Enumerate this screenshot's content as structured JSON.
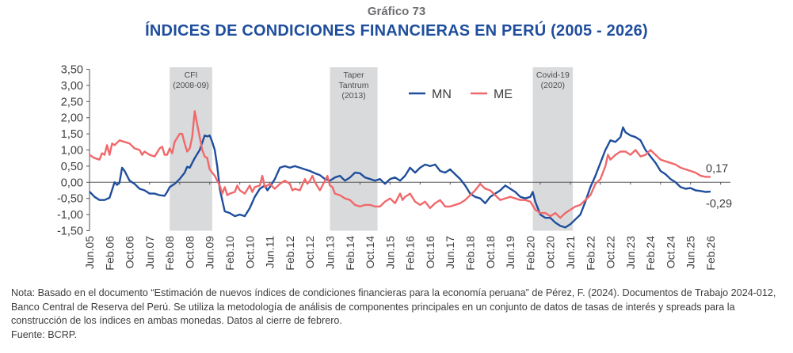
{
  "header": {
    "subtitle": "Gráfico 73",
    "title": "ÍNDICES DE CONDICIONES FINANCIERAS EN PERÚ (2005 - 2026)"
  },
  "chart_data": {
    "type": "line",
    "title": "ÍNDICES DE CONDICIONES FINANCIERAS EN PERÚ (2005 - 2026)",
    "xlabel": "",
    "ylabel": "",
    "x_unit": "months since Jun.05",
    "ylim": [
      -1.5,
      3.5
    ],
    "yticks": [
      3.5,
      3.0,
      2.5,
      2.0,
      1.5,
      1.0,
      0.5,
      0.0,
      -0.5,
      -1.0,
      -1.5
    ],
    "ytick_labels": [
      "3,50",
      "3,00",
      "2,50",
      "2,00",
      "1,50",
      "1,00",
      "0,50",
      "0,00",
      "-0,50",
      "-1,00",
      "-1,50"
    ],
    "xlim": [
      0,
      248
    ],
    "xtick_labels": [
      "Jun.05",
      "Feb.06",
      "Oct.06",
      "Jun.07",
      "Feb.08",
      "Oct.08",
      "Jun.09",
      "Feb.10",
      "Oct.10",
      "Jun.11",
      "Feb.12",
      "Oct.12",
      "Jun.13",
      "Feb.14",
      "Oct.14",
      "Jun.15",
      "Feb.16",
      "Oct.16",
      "Jun.17",
      "Feb.18",
      "Oct.18",
      "Jun.19",
      "Feb.20",
      "Oct.20",
      "Jun.21",
      "Feb.22",
      "Oct.22",
      "Jun.23",
      "Feb.24",
      "Oct.24",
      "Jun.25",
      "Feb.26"
    ],
    "xtick_step_months": 8,
    "grid": false,
    "legend": {
      "placement": "top-center",
      "entries": [
        {
          "name": "MN",
          "color": "#1f4e9c"
        },
        {
          "name": "ME",
          "color": "#f0686b"
        }
      ]
    },
    "shaded_periods": [
      {
        "label": [
          "CFI",
          "(2008-09)"
        ],
        "start": 32,
        "end": 49
      },
      {
        "label": [
          "Taper",
          "Tantrum",
          "(2013)"
        ],
        "start": 96,
        "end": 115
      },
      {
        "label": [
          "Covid-19",
          "(2020)"
        ],
        "start": 177,
        "end": 193
      }
    ],
    "series": [
      {
        "name": "MN",
        "color": "#1f4e9c",
        "end_label": "-0,29",
        "points": [
          [
            0,
            -0.29
          ],
          [
            2,
            -0.45
          ],
          [
            4,
            -0.55
          ],
          [
            6,
            -0.55
          ],
          [
            8,
            -0.48
          ],
          [
            10,
            0.0
          ],
          [
            11,
            -0.08
          ],
          [
            12,
            0.0
          ],
          [
            13,
            0.45
          ],
          [
            14,
            0.35
          ],
          [
            16,
            0.05
          ],
          [
            18,
            -0.05
          ],
          [
            20,
            -0.2
          ],
          [
            22,
            -0.25
          ],
          [
            24,
            -0.35
          ],
          [
            26,
            -0.35
          ],
          [
            28,
            -0.4
          ],
          [
            30,
            -0.42
          ],
          [
            31,
            -0.3
          ],
          [
            32,
            -0.15
          ],
          [
            34,
            -0.05
          ],
          [
            36,
            0.1
          ],
          [
            38,
            0.3
          ],
          [
            39,
            0.48
          ],
          [
            40,
            0.45
          ],
          [
            42,
            0.75
          ],
          [
            44,
            1.0
          ],
          [
            46,
            1.45
          ],
          [
            47,
            1.42
          ],
          [
            48,
            1.45
          ],
          [
            49,
            1.25
          ],
          [
            50,
            1.0
          ],
          [
            51,
            0.5
          ],
          [
            52,
            -0.2
          ],
          [
            53,
            -0.55
          ],
          [
            54,
            -0.9
          ],
          [
            56,
            -0.95
          ],
          [
            58,
            -1.05
          ],
          [
            60,
            -1.0
          ],
          [
            62,
            -1.05
          ],
          [
            64,
            -0.8
          ],
          [
            66,
            -0.45
          ],
          [
            68,
            -0.2
          ],
          [
            70,
            -0.1
          ],
          [
            71,
            -0.25
          ],
          [
            72,
            -0.15
          ],
          [
            74,
            0.1
          ],
          [
            76,
            0.45
          ],
          [
            78,
            0.5
          ],
          [
            80,
            0.45
          ],
          [
            82,
            0.5
          ],
          [
            84,
            0.45
          ],
          [
            86,
            0.4
          ],
          [
            88,
            0.35
          ],
          [
            90,
            0.28
          ],
          [
            92,
            0.22
          ],
          [
            94,
            0.1
          ],
          [
            96,
            0.05
          ],
          [
            98,
            0.15
          ],
          [
            100,
            0.2
          ],
          [
            102,
            0.05
          ],
          [
            104,
            0.15
          ],
          [
            106,
            0.3
          ],
          [
            108,
            0.28
          ],
          [
            110,
            0.15
          ],
          [
            112,
            0.1
          ],
          [
            114,
            0.05
          ],
          [
            116,
            0.1
          ],
          [
            118,
            -0.05
          ],
          [
            120,
            0.1
          ],
          [
            122,
            0.15
          ],
          [
            124,
            0.05
          ],
          [
            126,
            0.2
          ],
          [
            128,
            0.45
          ],
          [
            130,
            0.3
          ],
          [
            132,
            0.45
          ],
          [
            134,
            0.55
          ],
          [
            136,
            0.5
          ],
          [
            138,
            0.55
          ],
          [
            140,
            0.35
          ],
          [
            142,
            0.3
          ],
          [
            144,
            0.4
          ],
          [
            146,
            0.25
          ],
          [
            148,
            0.1
          ],
          [
            150,
            -0.1
          ],
          [
            152,
            -0.35
          ],
          [
            154,
            -0.45
          ],
          [
            156,
            -0.5
          ],
          [
            158,
            -0.65
          ],
          [
            160,
            -0.45
          ],
          [
            162,
            -0.35
          ],
          [
            164,
            -0.25
          ],
          [
            166,
            -0.1
          ],
          [
            168,
            -0.2
          ],
          [
            170,
            -0.3
          ],
          [
            172,
            -0.45
          ],
          [
            174,
            -0.5
          ],
          [
            176,
            -0.45
          ],
          [
            177,
            -0.3
          ],
          [
            178,
            -0.6
          ],
          [
            180,
            -1.0
          ],
          [
            182,
            -1.1
          ],
          [
            184,
            -1.1
          ],
          [
            186,
            -1.25
          ],
          [
            188,
            -1.35
          ],
          [
            190,
            -1.4
          ],
          [
            192,
            -1.3
          ],
          [
            194,
            -1.15
          ],
          [
            196,
            -1.0
          ],
          [
            198,
            -0.6
          ],
          [
            200,
            -0.15
          ],
          [
            202,
            0.2
          ],
          [
            204,
            0.6
          ],
          [
            206,
            1.0
          ],
          [
            208,
            1.3
          ],
          [
            210,
            1.25
          ],
          [
            212,
            1.4
          ],
          [
            213,
            1.7
          ],
          [
            214,
            1.55
          ],
          [
            216,
            1.45
          ],
          [
            218,
            1.4
          ],
          [
            220,
            1.3
          ],
          [
            222,
            1.0
          ],
          [
            224,
            0.8
          ],
          [
            226,
            0.6
          ],
          [
            228,
            0.35
          ],
          [
            230,
            0.25
          ],
          [
            232,
            0.1
          ],
          [
            234,
            0.0
          ],
          [
            236,
            -0.15
          ],
          [
            238,
            -0.2
          ],
          [
            240,
            -0.18
          ],
          [
            242,
            -0.25
          ],
          [
            244,
            -0.27
          ],
          [
            246,
            -0.3
          ],
          [
            248,
            -0.29
          ]
        ]
      },
      {
        "name": "ME",
        "color": "#f0686b",
        "end_label": "0,17",
        "points": [
          [
            0,
            0.85
          ],
          [
            2,
            0.75
          ],
          [
            4,
            0.7
          ],
          [
            5,
            0.9
          ],
          [
            6,
            0.85
          ],
          [
            7,
            1.15
          ],
          [
            8,
            0.85
          ],
          [
            9,
            1.2
          ],
          [
            10,
            1.15
          ],
          [
            12,
            1.3
          ],
          [
            14,
            1.25
          ],
          [
            16,
            1.2
          ],
          [
            18,
            1.05
          ],
          [
            20,
            1.0
          ],
          [
            21,
            0.85
          ],
          [
            22,
            0.95
          ],
          [
            24,
            0.85
          ],
          [
            26,
            0.8
          ],
          [
            28,
            1.05
          ],
          [
            29,
            1.1
          ],
          [
            30,
            0.85
          ],
          [
            31,
            0.85
          ],
          [
            32,
            1.05
          ],
          [
            33,
            0.9
          ],
          [
            34,
            1.25
          ],
          [
            36,
            1.5
          ],
          [
            37,
            1.5
          ],
          [
            38,
            1.2
          ],
          [
            39,
            0.95
          ],
          [
            40,
            1.05
          ],
          [
            41,
            1.4
          ],
          [
            42,
            2.2
          ],
          [
            43,
            1.8
          ],
          [
            44,
            1.4
          ],
          [
            45,
            1.0
          ],
          [
            46,
            0.8
          ],
          [
            47,
            0.75
          ],
          [
            48,
            0.4
          ],
          [
            49,
            0.3
          ],
          [
            50,
            0.2
          ],
          [
            51,
            0.05
          ],
          [
            52,
            -0.1
          ],
          [
            53,
            -0.35
          ],
          [
            54,
            -0.15
          ],
          [
            55,
            -0.4
          ],
          [
            56,
            -0.35
          ],
          [
            58,
            -0.3
          ],
          [
            59,
            -0.1
          ],
          [
            60,
            -0.25
          ],
          [
            62,
            -0.35
          ],
          [
            64,
            -0.1
          ],
          [
            65,
            -0.3
          ],
          [
            66,
            -0.15
          ],
          [
            68,
            -0.1
          ],
          [
            69,
            0.2
          ],
          [
            70,
            -0.15
          ],
          [
            72,
            -0.05
          ],
          [
            74,
            -0.2
          ],
          [
            76,
            -0.05
          ],
          [
            78,
            0.05
          ],
          [
            80,
            -0.05
          ],
          [
            81,
            -0.25
          ],
          [
            82,
            -0.2
          ],
          [
            84,
            -0.25
          ],
          [
            86,
            0.1
          ],
          [
            87,
            -0.05
          ],
          [
            88,
            0.05
          ],
          [
            89,
            0.2
          ],
          [
            90,
            0.0
          ],
          [
            92,
            -0.25
          ],
          [
            94,
            0.05
          ],
          [
            95,
            0.2
          ],
          [
            96,
            -0.1
          ],
          [
            97,
            -0.15
          ],
          [
            98,
            -0.35
          ],
          [
            100,
            -0.4
          ],
          [
            102,
            -0.5
          ],
          [
            104,
            -0.55
          ],
          [
            106,
            -0.7
          ],
          [
            108,
            -0.75
          ],
          [
            110,
            -0.7
          ],
          [
            112,
            -0.7
          ],
          [
            114,
            -0.75
          ],
          [
            116,
            -0.75
          ],
          [
            118,
            -0.6
          ],
          [
            120,
            -0.5
          ],
          [
            122,
            -0.65
          ],
          [
            124,
            -0.35
          ],
          [
            125,
            -0.55
          ],
          [
            126,
            -0.45
          ],
          [
            128,
            -0.35
          ],
          [
            130,
            -0.6
          ],
          [
            132,
            -0.7
          ],
          [
            134,
            -0.6
          ],
          [
            136,
            -0.8
          ],
          [
            138,
            -0.65
          ],
          [
            140,
            -0.55
          ],
          [
            142,
            -0.75
          ],
          [
            144,
            -0.75
          ],
          [
            146,
            -0.7
          ],
          [
            148,
            -0.65
          ],
          [
            150,
            -0.55
          ],
          [
            152,
            -0.4
          ],
          [
            154,
            -0.25
          ],
          [
            156,
            -0.05
          ],
          [
            158,
            -0.2
          ],
          [
            160,
            -0.25
          ],
          [
            162,
            -0.4
          ],
          [
            164,
            -0.55
          ],
          [
            166,
            -0.5
          ],
          [
            168,
            -0.45
          ],
          [
            170,
            -0.5
          ],
          [
            172,
            -0.55
          ],
          [
            174,
            -0.55
          ],
          [
            176,
            -0.6
          ],
          [
            178,
            -0.85
          ],
          [
            180,
            -0.95
          ],
          [
            182,
            -0.95
          ],
          [
            184,
            -1.05
          ],
          [
            186,
            -0.95
          ],
          [
            188,
            -1.1
          ],
          [
            190,
            -0.95
          ],
          [
            192,
            -0.85
          ],
          [
            194,
            -0.75
          ],
          [
            196,
            -0.7
          ],
          [
            198,
            -0.55
          ],
          [
            200,
            -0.4
          ],
          [
            202,
            -0.05
          ],
          [
            204,
            0.1
          ],
          [
            206,
            0.5
          ],
          [
            207,
            0.85
          ],
          [
            208,
            0.7
          ],
          [
            210,
            0.85
          ],
          [
            212,
            0.95
          ],
          [
            214,
            0.95
          ],
          [
            216,
            0.85
          ],
          [
            218,
            1.0
          ],
          [
            220,
            0.8
          ],
          [
            222,
            0.85
          ],
          [
            224,
            1.0
          ],
          [
            226,
            0.85
          ],
          [
            228,
            0.7
          ],
          [
            230,
            0.65
          ],
          [
            232,
            0.6
          ],
          [
            234,
            0.55
          ],
          [
            236,
            0.45
          ],
          [
            238,
            0.4
          ],
          [
            240,
            0.35
          ],
          [
            242,
            0.3
          ],
          [
            244,
            0.2
          ],
          [
            246,
            0.17
          ],
          [
            248,
            0.17
          ]
        ]
      }
    ]
  },
  "note": {
    "text": "Nota: Basado en el documento “Estimación de nuevos índices de condiciones financieras para la economía peruana” de Pérez, F. (2024). Documentos de Trabajo 2024-012, Banco Central de Reserva del Perú. Se utiliza la metodología de análisis de componentes principales en un conjunto de datos de tasas de interés y spreads para la construcción de los índices en ambas monedas. Datos al cierre de febrero.",
    "source": "Fuente: BCRP."
  }
}
